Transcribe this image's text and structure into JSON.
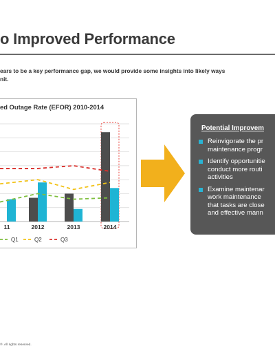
{
  "page": {
    "title": "o Improved Performance",
    "intro_lines": [
      "ears to be a key performance gap, we would provide some insights into likely ways",
      "nit."
    ],
    "footer": "®. All rights reserved."
  },
  "chart_data": {
    "type": "bar+line",
    "title": "ed Outage Rate (EFOR) 2010-2014",
    "categories": [
      "11",
      "2012",
      "2013",
      "2014"
    ],
    "bar_series": [
      {
        "name": "",
        "color": "#4d4d4d",
        "values": [
          null,
          17,
          20,
          64
        ]
      },
      {
        "name": "",
        "color": "#1fb4d4",
        "values": [
          16,
          28,
          9,
          24
        ]
      }
    ],
    "line_series": [
      {
        "name": "Q1",
        "color": "#7fbf3f",
        "dash": "dashed",
        "values": [
          14,
          20,
          16,
          17
        ]
      },
      {
        "name": "Q2",
        "color": "#f2c218",
        "dash": "dashed",
        "values": [
          27,
          30,
          23,
          28
        ]
      },
      {
        "name": "Q3",
        "color": "#d9302c",
        "dash": "dashed",
        "values": [
          38,
          38,
          40,
          36
        ]
      }
    ],
    "ylim": [
      0,
      70
    ],
    "highlight_category": "2014",
    "highlight_color": "#e8413b",
    "legend": [
      "Q1",
      "Q2",
      "Q3"
    ],
    "legend_position": "bottom",
    "grid": true
  },
  "arrow": {
    "color": "#f2b01c",
    "icon": "right-arrow-icon"
  },
  "panel": {
    "title": "Potential Improvem",
    "bullet_color": "#29b4d4",
    "bullets": [
      {
        "lines": [
          "Reinvigorate the pr",
          "maintenance progr"
        ]
      },
      {
        "lines": [
          "Identify opportunitie",
          "conduct more routi",
          "activities"
        ]
      },
      {
        "lines": [
          "Examine maintenar",
          "work maintenance",
          "that tasks are close",
          "and effective mann"
        ]
      }
    ]
  }
}
